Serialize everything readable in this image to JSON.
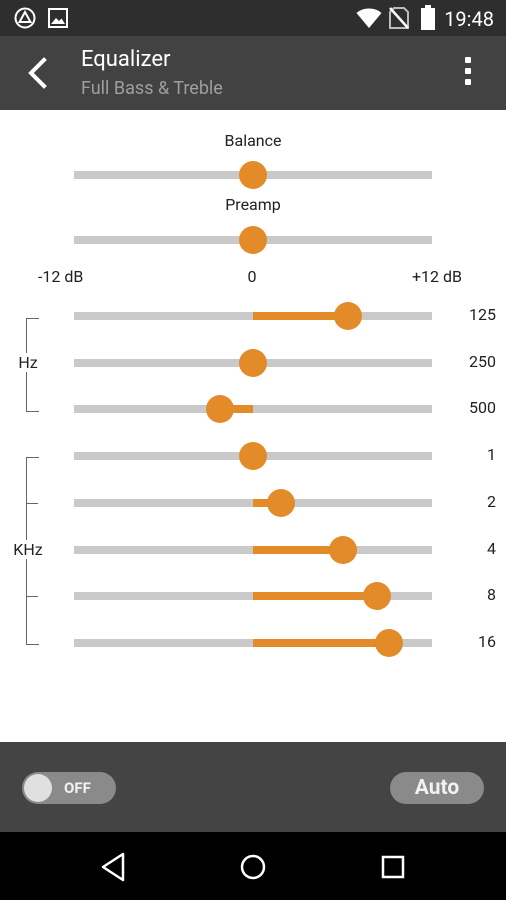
{
  "status_bar": {
    "time": "19:48"
  },
  "app_bar": {
    "title": "Equalizer",
    "subtitle": "Full Bass & Treble"
  },
  "balance": {
    "label": "Balance",
    "value": 0
  },
  "preamp": {
    "label": "Preamp",
    "value": 0
  },
  "scale": {
    "min_label": "-12 dB",
    "mid_label": "0",
    "max_label": "+12 dB",
    "min": -12,
    "max": 12
  },
  "groups": {
    "hz_label": "Hz",
    "khz_label": "KHz"
  },
  "bands": [
    {
      "label": "125",
      "gain_db": 6.4
    },
    {
      "label": "250",
      "gain_db": 0
    },
    {
      "label": "500",
      "gain_db": -2.2
    },
    {
      "label": "1",
      "gain_db": 0
    },
    {
      "label": "2",
      "gain_db": 1.9
    },
    {
      "label": "4",
      "gain_db": 6.0
    },
    {
      "label": "8",
      "gain_db": 8.3
    },
    {
      "label": "16",
      "gain_db": 9.1
    }
  ],
  "bottom": {
    "toggle_label": "OFF",
    "toggle_on": false,
    "auto_label": "Auto"
  },
  "colors": {
    "accent": "#e38a29",
    "track": "#c9c9c9",
    "app_bar": "#424242",
    "status_bar": "#2e2e2e"
  }
}
